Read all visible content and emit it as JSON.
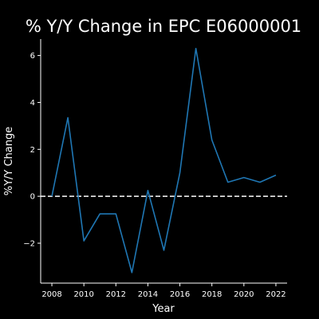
{
  "chart_data": {
    "type": "line",
    "title": "% Y/Y Change in EPC E06000001",
    "xlabel": "Year",
    "ylabel": "%Y/Y Change",
    "xlim": [
      2007.3,
      2022.7
    ],
    "ylim": [
      -3.7,
      6.7
    ],
    "xticks": [
      2008,
      2010,
      2012,
      2014,
      2016,
      2018,
      2020,
      2022
    ],
    "yticks": [
      -2,
      0,
      2,
      4,
      6
    ],
    "grid": false,
    "colors": {
      "background": "#000000",
      "foreground": "#ffffff",
      "series": "#1f77b4",
      "reference_line": "#ffffff"
    },
    "reference_line": {
      "y": 0,
      "style": "dashed"
    },
    "x": [
      2008,
      2009,
      2010,
      2011,
      2012,
      2013,
      2014,
      2015,
      2016,
      2017,
      2018,
      2019,
      2020,
      2021,
      2022
    ],
    "series": [
      {
        "values": [
          0.0,
          3.35,
          -1.9,
          -0.75,
          -0.75,
          -3.25,
          0.25,
          -2.3,
          1.0,
          6.3,
          2.4,
          0.6,
          0.8,
          0.6,
          0.9
        ]
      }
    ]
  }
}
